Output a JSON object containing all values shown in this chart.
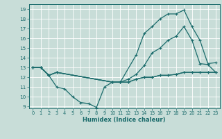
{
  "xlabel": "Humidex (Indice chaleur)",
  "bg_color": "#c8ddd8",
  "grid_color": "#ffffff",
  "line_color": "#1a6b6b",
  "xlim": [
    -0.5,
    23.5
  ],
  "ylim": [
    8.8,
    19.5
  ],
  "yticks": [
    9,
    10,
    11,
    12,
    13,
    14,
    15,
    16,
    17,
    18,
    19
  ],
  "xticks": [
    0,
    1,
    2,
    3,
    4,
    5,
    6,
    7,
    8,
    9,
    10,
    11,
    12,
    13,
    14,
    15,
    16,
    17,
    18,
    19,
    20,
    21,
    22,
    23
  ],
  "line1_top": {
    "x": [
      0,
      1,
      2,
      3,
      10,
      11,
      13,
      14,
      15,
      16,
      17,
      18,
      19,
      20,
      21,
      22,
      23
    ],
    "y": [
      13,
      13,
      12.2,
      12.5,
      11.5,
      11.5,
      14.3,
      16.5,
      17.2,
      18.0,
      18.5,
      18.5,
      18.9,
      17.2,
      15.8,
      13.4,
      13.5
    ]
  },
  "line2_diag": {
    "x": [
      0,
      1,
      2,
      3,
      10,
      11,
      12,
      13,
      14,
      15,
      16,
      17,
      18,
      19,
      20,
      21,
      22,
      23
    ],
    "y": [
      13,
      13,
      12.2,
      12.5,
      11.5,
      11.5,
      11.8,
      12.3,
      13.2,
      14.5,
      15.0,
      15.8,
      16.2,
      17.2,
      15.8,
      13.4,
      13.3,
      12.5
    ]
  },
  "line3_flat": {
    "x": [
      0,
      1,
      2,
      3,
      10,
      11,
      12,
      13,
      14,
      15,
      16,
      17,
      18,
      19,
      20,
      21,
      22,
      23
    ],
    "y": [
      13,
      13,
      12.2,
      12.5,
      11.5,
      11.5,
      11.5,
      11.8,
      12.0,
      12.0,
      12.2,
      12.2,
      12.3,
      12.5,
      12.5,
      12.5,
      12.5,
      12.5
    ]
  },
  "line4_low": {
    "x": [
      0,
      1,
      2,
      3,
      4,
      5,
      6,
      7,
      8,
      9,
      10,
      11,
      12,
      13,
      14,
      15,
      16,
      17,
      18,
      19,
      20,
      21,
      22,
      23
    ],
    "y": [
      13,
      13,
      12.2,
      11.0,
      10.8,
      10.0,
      9.4,
      9.3,
      8.9,
      11.0,
      11.5,
      11.5,
      11.5,
      11.8,
      12.0,
      12.0,
      12.2,
      12.2,
      12.3,
      12.5,
      12.5,
      12.5,
      12.5,
      12.5
    ]
  }
}
